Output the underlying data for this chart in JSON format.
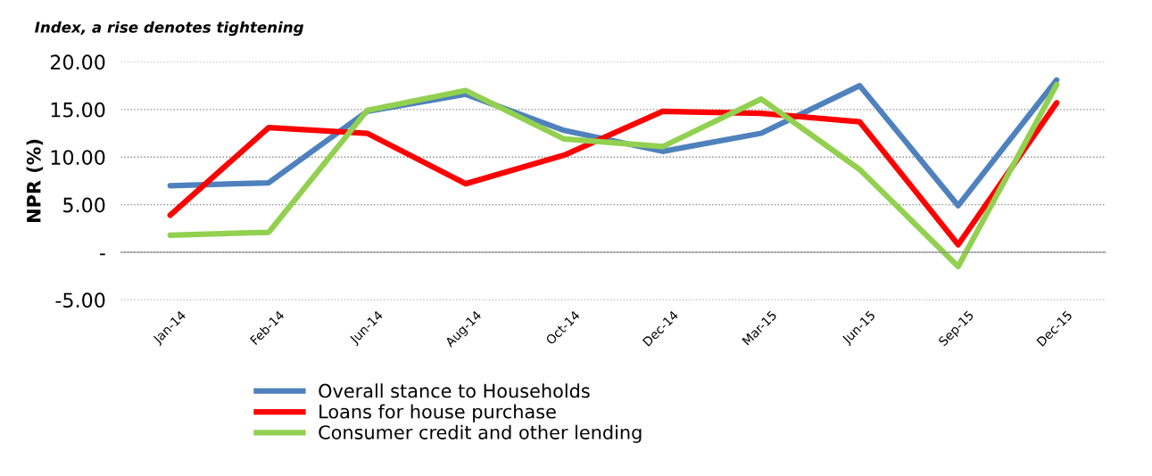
{
  "chart_data": {
    "type": "line",
    "title": "Index, a rise denotes tightening",
    "ylabel": "NPR (%)",
    "categories": [
      "Jan-14",
      "Feb-14",
      "Jun-14",
      "Aug-14",
      "Oct-14",
      "Dec-14",
      "Mar-15",
      "Jun-15",
      "Sep-15",
      "Dec-15"
    ],
    "series": [
      {
        "name": "Overall stance to Households",
        "color": "#4f81bd",
        "values": [
          7.0,
          7.3,
          14.8,
          16.6,
          12.8,
          10.6,
          12.5,
          17.5,
          4.9,
          18.1
        ]
      },
      {
        "name": "Loans for house purchase",
        "color": "#ff0000",
        "values": [
          3.9,
          13.1,
          12.5,
          7.2,
          10.2,
          14.8,
          14.6,
          13.7,
          0.8,
          15.7
        ]
      },
      {
        "name": "Consumer credit and other lending",
        "color": "#92d050",
        "values": [
          1.8,
          2.1,
          14.9,
          17.0,
          11.9,
          11.1,
          16.1,
          8.7,
          -1.5,
          17.6
        ]
      }
    ],
    "ylim": [
      -5,
      20
    ],
    "yticks": [
      {
        "value": -5,
        "label": "-5.00"
      },
      {
        "value": 0,
        "label": "-"
      },
      {
        "value": 5,
        "label": "5.00"
      },
      {
        "value": 10,
        "label": "10.00"
      },
      {
        "value": 15,
        "label": "15.00"
      },
      {
        "value": 20,
        "label": "20.00"
      }
    ],
    "grid": "y",
    "legend": "bottom",
    "marker": "none",
    "line_style": "solid"
  }
}
